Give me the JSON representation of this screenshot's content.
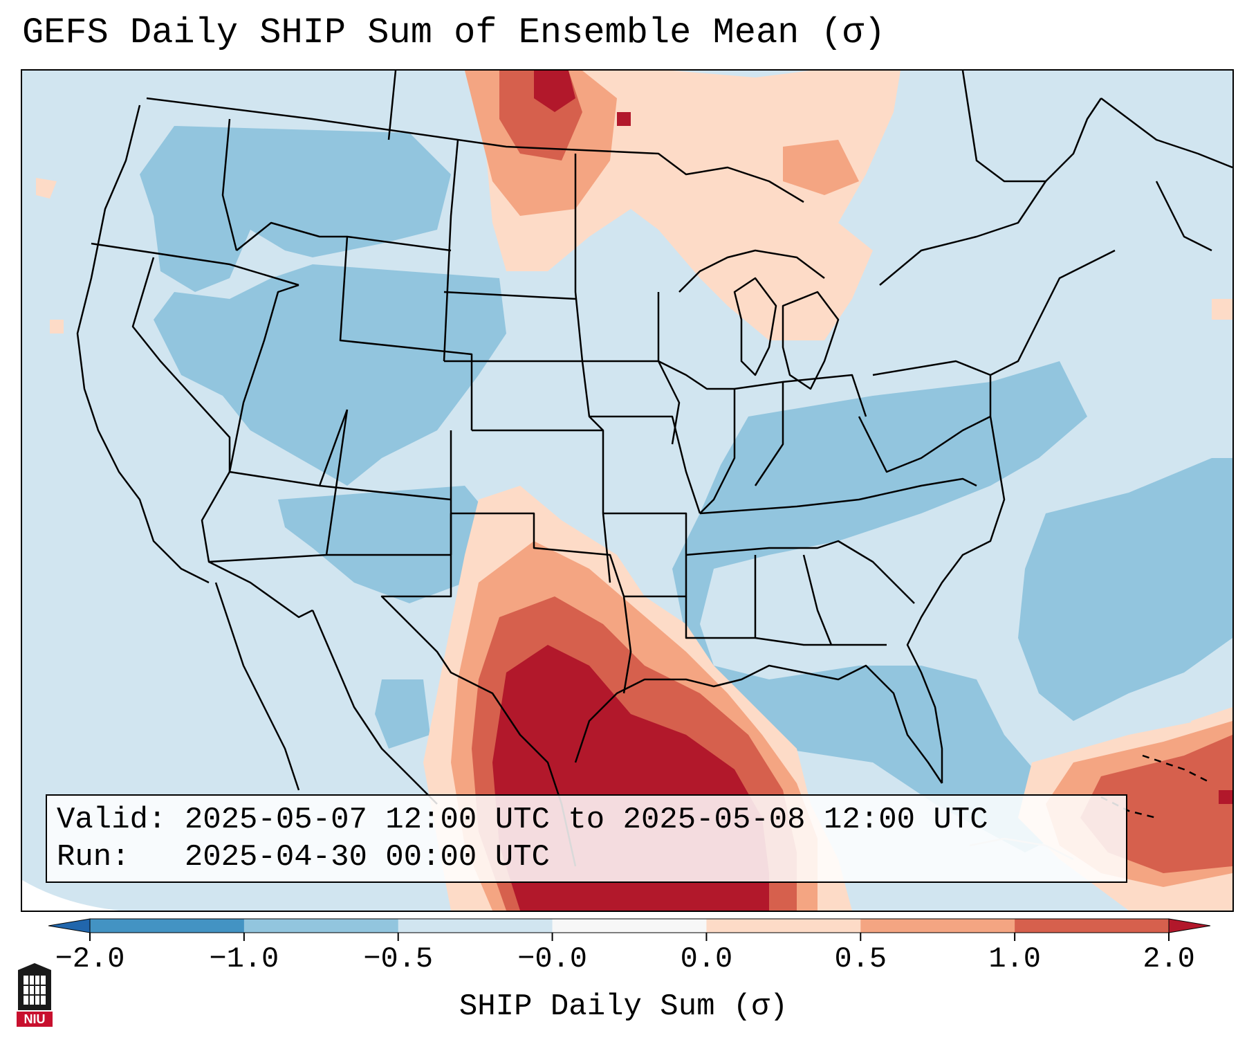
{
  "title": "GEFS Daily SHIP Sum of Ensemble Mean (σ)",
  "info": {
    "valid_line": "Valid: 2025-05-07 12:00 UTC to 2025-05-08 12:00 UTC",
    "run_line": "Run:   2025-04-30 00:00 UTC"
  },
  "colorbar": {
    "label": "SHIP Daily Sum (σ)",
    "ticks": [
      "−2.0",
      "−1.0",
      "−0.5",
      "−0.0",
      "0.0",
      "0.5",
      "1.0",
      "2.0"
    ],
    "colors": [
      "#4393c3",
      "#92c5de",
      "#d1e5f0",
      "#f7f7f7",
      "#fddbc7",
      "#f4a582",
      "#d6604d"
    ],
    "extend_low_color": "#2166ac",
    "extend_high_color": "#b2182b"
  },
  "map": {
    "background_color": "#d1e5f0",
    "region": "Contiguous United States"
  },
  "logo": {
    "text": "NIU"
  }
}
